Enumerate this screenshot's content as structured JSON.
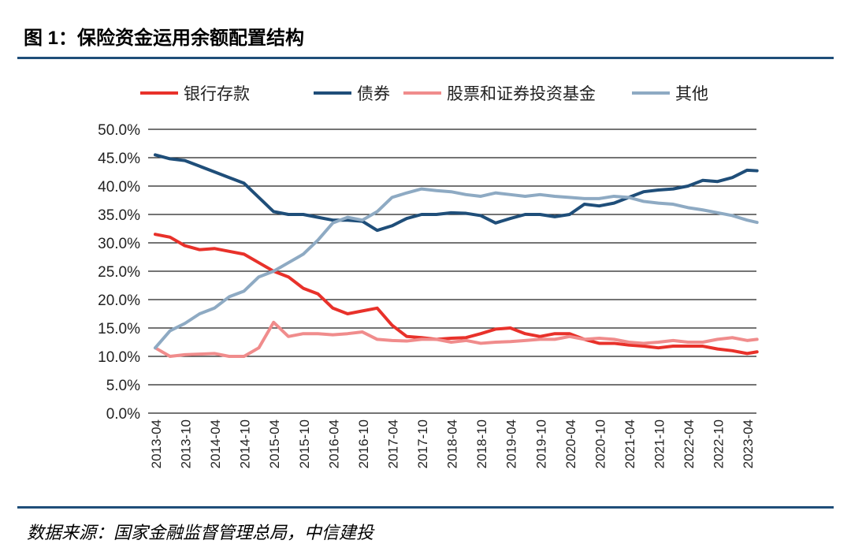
{
  "title": "图 1：保险资金运用余额配置结构",
  "source": "数据来源：国家金融监督管理总局，中信建投",
  "chart_data": {
    "type": "line",
    "title": "",
    "xlabel": "",
    "ylabel": "",
    "ylim": [
      0,
      50
    ],
    "yticks": [
      "0.0%",
      "5.0%",
      "10.0%",
      "15.0%",
      "20.0%",
      "25.0%",
      "30.0%",
      "35.0%",
      "40.0%",
      "45.0%",
      "50.0%"
    ],
    "xticks": [
      "2013-04",
      "2013-10",
      "2014-04",
      "2014-10",
      "2015-04",
      "2015-10",
      "2016-04",
      "2016-10",
      "2017-04",
      "2017-10",
      "2018-04",
      "2018-10",
      "2019-04",
      "2019-10",
      "2020-04",
      "2020-10",
      "2021-04",
      "2021-10",
      "2022-04",
      "2022-10",
      "2023-04"
    ],
    "grid": true,
    "legend": "top",
    "x": [
      "2013-04",
      "2013-07",
      "2013-10",
      "2014-01",
      "2014-04",
      "2014-07",
      "2014-10",
      "2015-01",
      "2015-04",
      "2015-07",
      "2015-10",
      "2016-01",
      "2016-04",
      "2016-07",
      "2016-10",
      "2017-01",
      "2017-04",
      "2017-07",
      "2017-10",
      "2018-01",
      "2018-04",
      "2018-07",
      "2018-10",
      "2019-01",
      "2019-04",
      "2019-07",
      "2019-10",
      "2020-01",
      "2020-04",
      "2020-07",
      "2020-10",
      "2021-01",
      "2021-04",
      "2021-07",
      "2021-10",
      "2022-01",
      "2022-04",
      "2022-07",
      "2022-10",
      "2023-01",
      "2023-04",
      "2023-06"
    ],
    "series": [
      {
        "name": "银行存款",
        "color": "#e8312a",
        "values": [
          31.5,
          31,
          29.5,
          28.8,
          29,
          28.5,
          28,
          26.5,
          25,
          24,
          22,
          21,
          18.5,
          17.5,
          18,
          18.5,
          15.5,
          13.5,
          13.3,
          13,
          13.2,
          13.3,
          14,
          14.8,
          15,
          14,
          13.5,
          14,
          14,
          13,
          12.3,
          12.3,
          12,
          11.8,
          11.5,
          11.8,
          11.8,
          11.8,
          11.3,
          11,
          10.5,
          10.8
        ]
      },
      {
        "name": "债券",
        "color": "#1f4e79",
        "values": [
          45.5,
          44.8,
          44.5,
          43.5,
          42.5,
          41.5,
          40.5,
          38,
          35.5,
          35,
          35,
          34.5,
          34,
          34,
          33.8,
          32.2,
          33,
          34.3,
          35,
          35,
          35.3,
          35.2,
          34.8,
          33.5,
          34.3,
          35,
          35,
          34.6,
          35,
          36.8,
          36.5,
          37,
          38,
          39,
          39.3,
          39.5,
          40,
          41,
          40.8,
          41.5,
          42.8,
          42.7
        ]
      },
      {
        "name": "股票和证券投资基金",
        "color": "#f08c8c",
        "values": [
          11.5,
          10,
          10.3,
          10.4,
          10.5,
          10,
          10,
          11.5,
          16,
          13.5,
          14,
          14,
          13.8,
          14,
          14.3,
          13,
          12.8,
          12.7,
          13,
          13,
          12.5,
          12.8,
          12.3,
          12.5,
          12.6,
          12.8,
          13,
          13,
          13.5,
          13,
          13.2,
          13,
          12.5,
          12.3,
          12.5,
          12.8,
          12.5,
          12.5,
          13,
          13.3,
          12.8,
          13
        ]
      },
      {
        "name": "其他",
        "color": "#8eaac3",
        "values": [
          11.5,
          14.5,
          15.8,
          17.5,
          18.5,
          20.5,
          21.5,
          24,
          25,
          26.5,
          28,
          30.5,
          33.5,
          34.5,
          34,
          35.5,
          38,
          38.8,
          39.5,
          39.2,
          39,
          38.5,
          38.2,
          38.8,
          38.5,
          38.2,
          38.5,
          38.2,
          38,
          37.8,
          37.8,
          38.2,
          38,
          37.3,
          37,
          36.8,
          36.2,
          35.8,
          35.3,
          34.8,
          34,
          33.6
        ]
      }
    ]
  }
}
